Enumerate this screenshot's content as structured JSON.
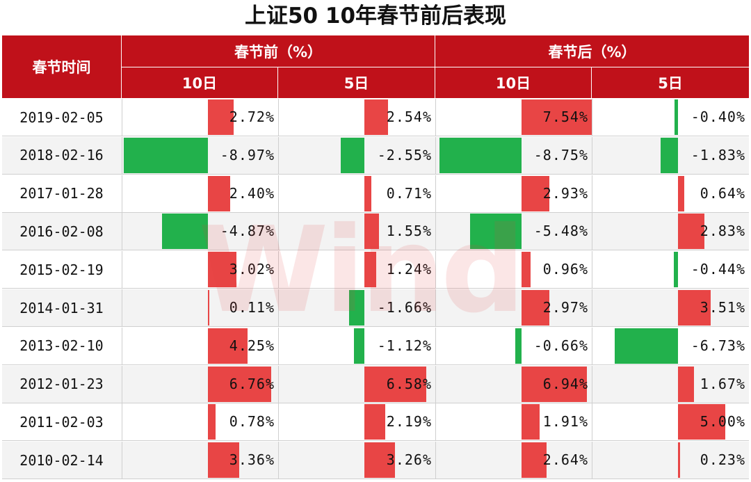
{
  "title": "上证50 10年春节前后表现",
  "watermark": "Wind",
  "header": {
    "date_col": "春节时间",
    "group_before": "春节前（%）",
    "group_after": "春节后（%）",
    "sub_10d": "10日",
    "sub_5d": "5日"
  },
  "colors": {
    "header_bg": "#c0111a",
    "positive": "#e84545",
    "negative": "#22b14c"
  },
  "chart_data": {
    "type": "table",
    "title": "上证50 10年春节前后表现",
    "columns": [
      "春节前 10日",
      "春节前 5日",
      "春节后 10日",
      "春节后 5日"
    ],
    "rows": [
      {
        "date": "2019-02-05",
        "values": [
          2.72,
          2.54,
          7.54,
          -0.4
        ],
        "labels": [
          "2.72%",
          "2.54%",
          "7.54%",
          "-0.40%"
        ]
      },
      {
        "date": "2018-02-16",
        "values": [
          -8.97,
          -2.55,
          -8.75,
          -1.83
        ],
        "labels": [
          "-8.97%",
          "-2.55%",
          "-8.75%",
          "-1.83%"
        ]
      },
      {
        "date": "2017-01-28",
        "values": [
          2.4,
          0.71,
          2.93,
          0.64
        ],
        "labels": [
          "2.40%",
          "0.71%",
          "2.93%",
          "0.64%"
        ]
      },
      {
        "date": "2016-02-08",
        "values": [
          -4.87,
          1.55,
          -5.48,
          2.83
        ],
        "labels": [
          "-4.87%",
          "1.55%",
          "-5.48%",
          "2.83%"
        ]
      },
      {
        "date": "2015-02-19",
        "values": [
          3.02,
          1.24,
          0.96,
          -0.44
        ],
        "labels": [
          "3.02%",
          "1.24%",
          "0.96%",
          "-0.44%"
        ]
      },
      {
        "date": "2014-01-31",
        "values": [
          0.11,
          -1.66,
          2.97,
          3.51
        ],
        "labels": [
          "0.11%",
          "-1.66%",
          "2.97%",
          "3.51%"
        ]
      },
      {
        "date": "2013-02-10",
        "values": [
          4.25,
          -1.12,
          -0.66,
          -6.73
        ],
        "labels": [
          "4.25%",
          "-1.12%",
          "-0.66%",
          "-6.73%"
        ]
      },
      {
        "date": "2012-01-23",
        "values": [
          6.76,
          6.58,
          6.94,
          1.67
        ],
        "labels": [
          "6.76%",
          "6.58%",
          "6.94%",
          "1.67%"
        ]
      },
      {
        "date": "2011-02-03",
        "values": [
          0.78,
          2.19,
          1.91,
          5.0
        ],
        "labels": [
          "0.78%",
          "2.19%",
          "1.91%",
          "5.00%"
        ]
      },
      {
        "date": "2010-02-14",
        "values": [
          3.36,
          3.26,
          2.64,
          0.23
        ],
        "labels": [
          "3.36%",
          "3.26%",
          "2.64%",
          "0.23%"
        ]
      }
    ]
  }
}
